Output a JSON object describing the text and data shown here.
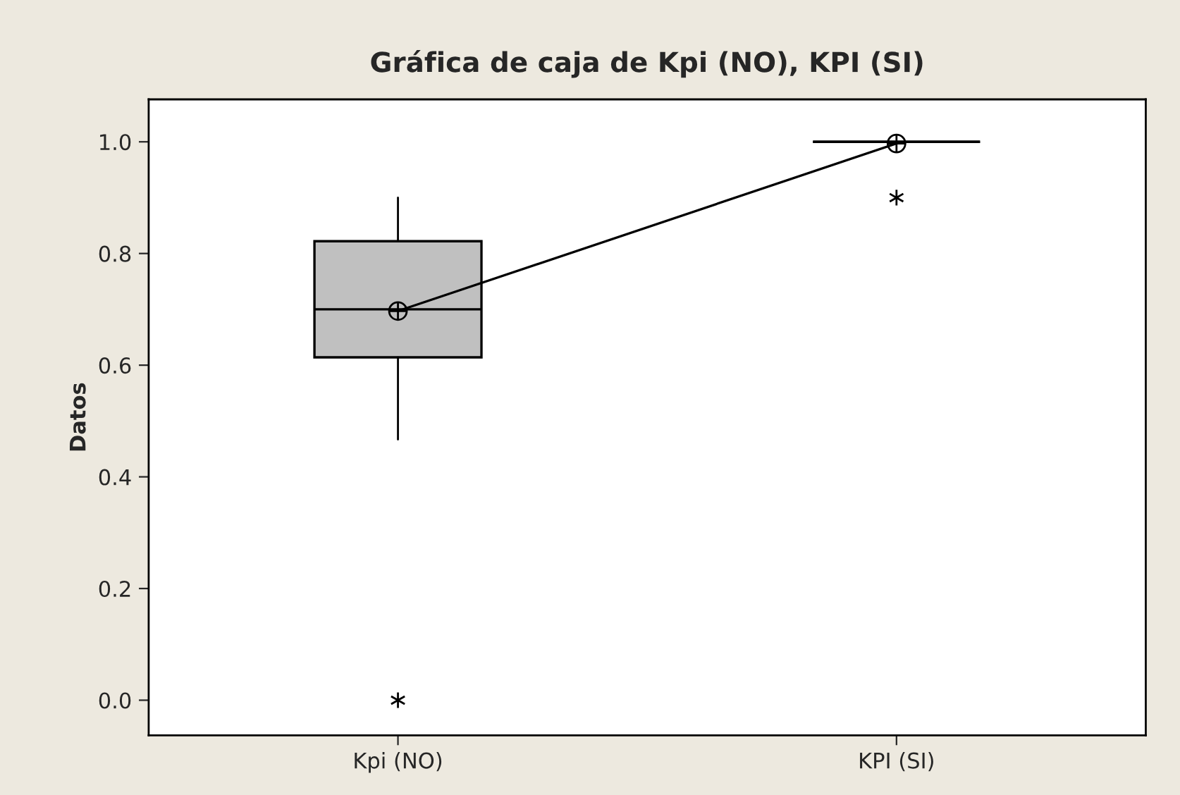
{
  "chart_data": {
    "type": "box",
    "title": "Gráfica de caja de Kpi (NO), KPI (SI)",
    "ylabel": "Datos",
    "categories": [
      "Kpi (NO)",
      "KPI (SI)"
    ],
    "boxes": [
      {
        "low": 0.467,
        "q1": 0.614,
        "median": 0.7,
        "q3": 0.822,
        "high": 0.9,
        "mean": 0.697,
        "outliers": [
          0.0
        ]
      },
      {
        "low": 1.0,
        "q1": 1.0,
        "median": 1.0,
        "q3": 1.0,
        "high": 1.0,
        "mean": 0.997,
        "outliers": [
          0.9
        ]
      }
    ],
    "colors": [
      "#c0c0c0",
      "#000000"
    ],
    "series": [
      {
        "type": "line",
        "x": [
          "Kpi (NO)",
          "KPI (SI)"
        ],
        "values": [
          0.697,
          0.997
        ],
        "color": "#000000"
      }
    ],
    "ylim": [
      -0.063,
      1.076
    ],
    "yticks": [
      {
        "value": 0,
        "label": "0.0"
      },
      {
        "value": 0.2,
        "label": "0.2"
      },
      {
        "value": 0.4,
        "label": "0.4"
      },
      {
        "value": 0.6,
        "label": "0.6"
      },
      {
        "value": 0.8,
        "label": "0.8"
      },
      {
        "value": 1,
        "label": "1.0"
      }
    ],
    "grid": false,
    "legend": false
  }
}
